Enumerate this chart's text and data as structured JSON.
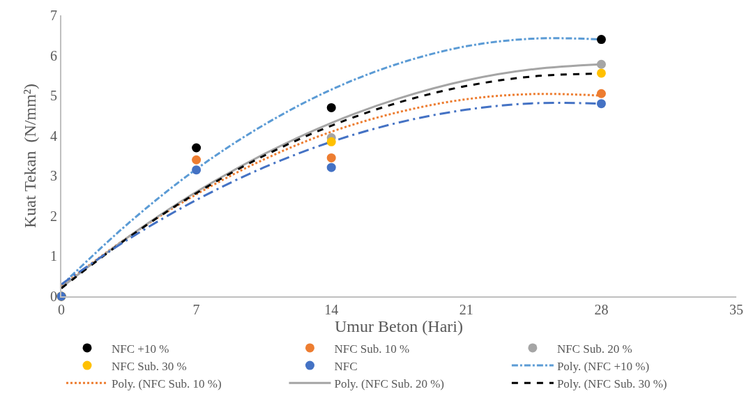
{
  "chart_data": {
    "type": "scatter",
    "xlabel": "Umur Beton (Hari)",
    "ylabel": "Kuat Tekan  (N/mm²)",
    "x": [
      0,
      7,
      14,
      28
    ],
    "xlim": [
      0,
      35
    ],
    "xticks": [
      0,
      7,
      14,
      21,
      28,
      35
    ],
    "ylim": [
      0,
      7
    ],
    "yticks": [
      0,
      1,
      2,
      3,
      4,
      5,
      6,
      7
    ],
    "grid": false,
    "legend": "bottom",
    "marker": "circle",
    "series": [
      {
        "name": "NFC +10 %",
        "color": "#000000",
        "values": [
          0,
          3.7,
          4.7,
          6.4
        ]
      },
      {
        "name": "NFC Sub. 10 %",
        "color": "#ed7d31",
        "values": [
          0,
          3.4,
          3.45,
          5.05
        ]
      },
      {
        "name": "NFC Sub. 20 %",
        "color": "#a5a5a5",
        "values": [
          0,
          null,
          3.95,
          5.78
        ]
      },
      {
        "name": "NFC Sub. 30 %",
        "color": "#ffc000",
        "values": [
          0,
          null,
          3.85,
          5.56
        ]
      },
      {
        "name": "NFC",
        "color": "#4472c4",
        "values": [
          0,
          3.15,
          3.21,
          4.8
        ]
      },
      {
        "name": "Poly. (NFC +10 %)",
        "type": "line",
        "color": "#5b9bd5",
        "line_style": "dashdot",
        "marker": "none",
        "x": [
          0,
          3.5,
          7,
          10.5,
          14,
          17.5,
          21,
          24.5,
          28
        ],
        "values": [
          0.27,
          1.83,
          3.17,
          4.27,
          5.15,
          5.8,
          6.23,
          6.42,
          6.4
        ]
      },
      {
        "name": "Poly. (NFC Sub. 10 %)",
        "type": "line",
        "color": "#ed7d31",
        "line_style": "dotted",
        "marker": "none",
        "x": [
          0,
          3.5,
          7,
          10.5,
          14,
          17.5,
          21,
          24.5,
          28
        ],
        "values": [
          0.25,
          1.49,
          2.54,
          3.41,
          4.1,
          4.59,
          4.91,
          5.04,
          5.0
        ]
      },
      {
        "name": "Poly. (NFC Sub. 20 %)",
        "type": "line",
        "color": "#a5a5a5",
        "line_style": "solid",
        "marker": "none",
        "x": [
          0,
          3.5,
          7,
          10.5,
          14,
          17.5,
          21,
          24.5,
          28
        ],
        "values": [
          0.22,
          1.49,
          2.6,
          3.54,
          4.32,
          4.93,
          5.38,
          5.66,
          5.78
        ]
      },
      {
        "name": "Poly. (NFC Sub. 30 %)",
        "type": "line",
        "color": "#000000",
        "line_style": "dashed",
        "marker": "none",
        "x": [
          0,
          3.5,
          7,
          10.5,
          14,
          17.5,
          21,
          24.5,
          28
        ],
        "values": [
          0.2,
          1.47,
          2.57,
          3.5,
          4.25,
          4.83,
          5.24,
          5.48,
          5.55
        ]
      },
      {
        "type": "line",
        "color": "#4472c4",
        "line_style": "longdashdot",
        "marker": "none",
        "x": [
          0,
          3.5,
          7,
          10.5,
          14,
          17.5,
          21,
          24.5,
          28
        ],
        "values": [
          0.3,
          1.43,
          2.4,
          3.21,
          3.85,
          4.33,
          4.65,
          4.81,
          4.8
        ]
      }
    ]
  }
}
